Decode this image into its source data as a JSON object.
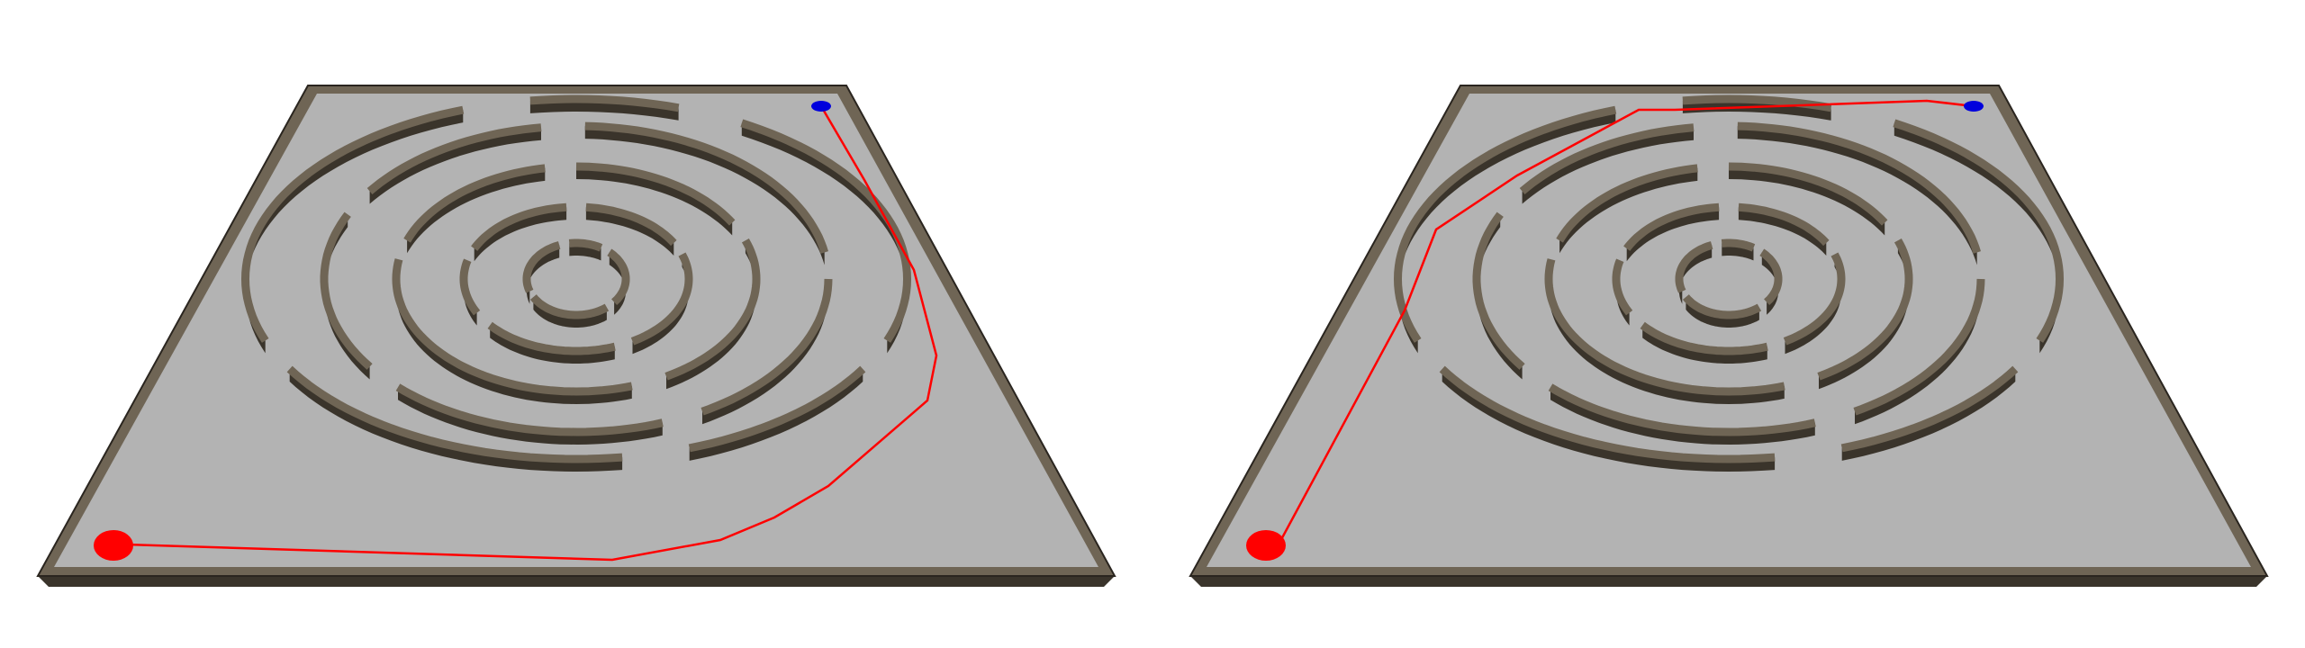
{
  "colors": {
    "background": "#ffffff",
    "floor": "#b3b3b3",
    "wall_top": "#6f6555",
    "wall_side": "#3a342b",
    "wall_edge": "#2a251f",
    "path": "#ff0000",
    "start": "#ff0000",
    "goal": "#0000dd"
  },
  "icons": {
    "start": "red-start-marker",
    "goal": "blue-goal-marker"
  },
  "panels": [
    {
      "id": "left",
      "route": "clockwise"
    },
    {
      "id": "right",
      "route": "counterclockwise"
    }
  ]
}
